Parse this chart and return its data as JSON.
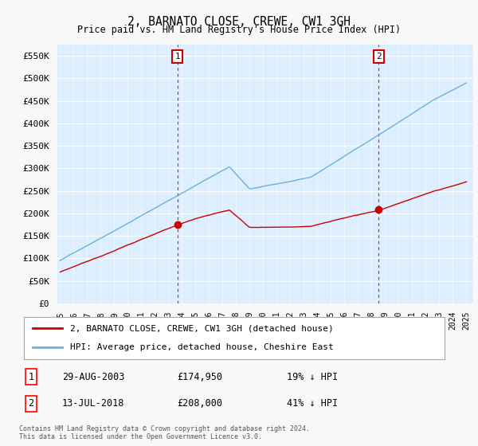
{
  "title": "2, BARNATO CLOSE, CREWE, CW1 3GH",
  "subtitle": "Price paid vs. HM Land Registry's House Price Index (HPI)",
  "ytick_values": [
    0,
    50000,
    100000,
    150000,
    200000,
    250000,
    300000,
    350000,
    400000,
    450000,
    500000,
    550000
  ],
  "ylim": [
    0,
    575000
  ],
  "x_start_year": 1995,
  "x_end_year": 2025,
  "sale1_date": 2003.66,
  "sale1_price": 174950,
  "sale2_date": 2018.53,
  "sale2_price": 208000,
  "hpi_color": "#6ab0de",
  "sale_color": "#cc0000",
  "vline_color": "#cc0000",
  "plot_bg": "#ddeeff",
  "fig_bg": "#f8f8f8",
  "legend_label_sale": "2, BARNATO CLOSE, CREWE, CW1 3GH (detached house)",
  "legend_label_hpi": "HPI: Average price, detached house, Cheshire East",
  "sale1_row": "29-AUG-2003",
  "sale1_price_str": "£174,950",
  "sale1_pct": "19% ↓ HPI",
  "sale2_row": "13-JUL-2018",
  "sale2_price_str": "£208,000",
  "sale2_pct": "41% ↓ HPI",
  "footer": "Contains HM Land Registry data © Crown copyright and database right 2024.\nThis data is licensed under the Open Government Licence v3.0."
}
